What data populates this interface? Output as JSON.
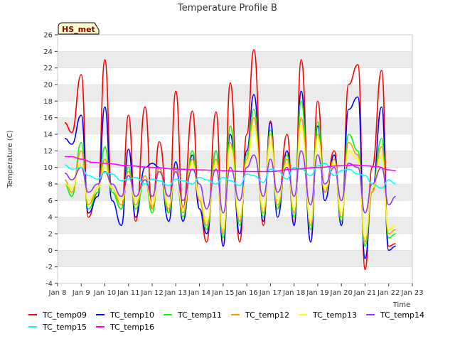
{
  "badge": "HS_met",
  "chart_data": {
    "type": "line",
    "title": "Temperature Profile B",
    "xlabel": "Time",
    "ylabel": "Temperature (C)",
    "ylim": [
      -4,
      26
    ],
    "yticks": [
      -4,
      -2,
      0,
      2,
      4,
      6,
      8,
      10,
      12,
      14,
      16,
      18,
      20,
      22,
      24,
      26
    ],
    "xlim": [
      8,
      23
    ],
    "xticks": [
      8,
      9,
      10,
      11,
      12,
      13,
      14,
      15,
      16,
      17,
      18,
      19,
      20,
      21,
      22,
      23
    ],
    "xtick_labels": [
      "Jan 8",
      "Jan 9",
      "Jan 10",
      "Jan 11",
      "Jan 12",
      "Jan 13",
      "Jan 14",
      "Jan 15",
      "Jan 16",
      "Jan 17",
      "Jan 18",
      "Jan 19",
      "Jan 20",
      "Jan 21",
      "Jan 22",
      "Jan 23"
    ],
    "grid": "horizontal bands",
    "legend_position": "bottom",
    "series": [
      {
        "name": "TC_temp09",
        "color": "#ff0000",
        "x": [
          8.3,
          8.6,
          9.0,
          9.3,
          9.7,
          10.0,
          10.3,
          10.7,
          11.0,
          11.3,
          11.7,
          12.0,
          12.3,
          12.7,
          13.0,
          13.3,
          13.7,
          14.0,
          14.3,
          14.7,
          15.0,
          15.3,
          15.7,
          16.0,
          16.3,
          16.7,
          17.0,
          17.3,
          17.7,
          18.0,
          18.3,
          18.7,
          19.0,
          19.3,
          19.7,
          20.0,
          20.3,
          20.7,
          21.0,
          21.3,
          21.7,
          22.0,
          22.3
        ],
        "y": [
          15.4,
          14.2,
          21.2,
          4.0,
          7.0,
          23.0,
          7.0,
          5.0,
          16.3,
          3.5,
          17.3,
          5.0,
          13.1,
          4.5,
          19.2,
          5.0,
          16.8,
          5.0,
          1.0,
          16.7,
          0.5,
          20.2,
          1.0,
          14.0,
          24.2,
          3.0,
          15.6,
          5.0,
          14.0,
          3.0,
          23.0,
          1.0,
          18.0,
          7.0,
          12.0,
          3.0,
          20.0,
          22.4,
          -2.3,
          10.0,
          21.7,
          0.5,
          0.8
        ]
      },
      {
        "name": "TC_temp10",
        "color": "#0000ff",
        "x": [
          8.3,
          8.6,
          9.0,
          9.3,
          9.7,
          10.0,
          10.3,
          10.7,
          11.0,
          11.3,
          11.7,
          12.0,
          12.3,
          12.7,
          13.0,
          13.3,
          13.7,
          14.0,
          14.3,
          14.7,
          15.0,
          15.3,
          15.7,
          16.0,
          16.3,
          16.7,
          17.0,
          17.3,
          17.7,
          18.0,
          18.3,
          18.7,
          19.0,
          19.3,
          19.7,
          20.0,
          20.3,
          20.7,
          21.0,
          21.3,
          21.7,
          22.0,
          22.3
        ],
        "y": [
          13.5,
          12.8,
          16.3,
          4.5,
          6.5,
          17.3,
          6.0,
          3.0,
          12.2,
          4.0,
          10.0,
          10.5,
          10.0,
          3.5,
          10.7,
          3.5,
          11.5,
          5.0,
          2.0,
          12.0,
          0.5,
          14.0,
          2.0,
          12.0,
          18.8,
          3.5,
          15.4,
          4.0,
          12.0,
          3.0,
          19.2,
          1.0,
          15.0,
          6.0,
          11.5,
          3.0,
          17.0,
          18.5,
          -1.0,
          7.0,
          17.3,
          0.0,
          0.5
        ]
      },
      {
        "name": "TC_temp11",
        "color": "#00ff00",
        "x": [
          8.3,
          8.6,
          9.0,
          9.3,
          9.7,
          10.0,
          10.3,
          10.7,
          11.0,
          11.3,
          11.7,
          12.0,
          12.3,
          12.7,
          13.0,
          13.3,
          13.7,
          14.0,
          14.3,
          14.7,
          15.0,
          15.3,
          15.7,
          16.0,
          16.3,
          16.7,
          17.0,
          17.3,
          17.7,
          18.0,
          18.3,
          18.7,
          19.0,
          19.3,
          19.7,
          20.0,
          20.3,
          20.7,
          21.0,
          21.3,
          21.7,
          22.0,
          22.3
        ],
        "y": [
          8.0,
          6.5,
          13.0,
          5.0,
          7.0,
          12.5,
          7.0,
          5.0,
          10.0,
          5.0,
          8.5,
          4.5,
          10.0,
          4.5,
          10.0,
          4.0,
          12.0,
          6.0,
          2.5,
          12.0,
          1.5,
          15.0,
          3.0,
          11.5,
          17.0,
          4.0,
          14.5,
          5.0,
          11.5,
          4.0,
          18.0,
          2.5,
          15.5,
          7.0,
          11.0,
          3.5,
          14.0,
          12.0,
          0.5,
          7.0,
          13.5,
          1.5,
          2.0
        ]
      },
      {
        "name": "TC_temp12",
        "color": "#ff9900",
        "x": [
          8.3,
          8.6,
          9.0,
          9.3,
          9.7,
          10.0,
          10.3,
          10.7,
          11.0,
          11.3,
          11.7,
          12.0,
          12.3,
          12.7,
          13.0,
          13.3,
          13.7,
          14.0,
          14.3,
          14.7,
          15.0,
          15.3,
          15.7,
          16.0,
          16.3,
          16.7,
          17.0,
          17.3,
          17.7,
          18.0,
          18.3,
          18.7,
          19.0,
          19.3,
          19.7,
          20.0,
          20.3,
          20.7,
          21.0,
          21.3,
          21.7,
          22.0,
          22.3
        ],
        "y": [
          8.5,
          7.0,
          12.0,
          5.5,
          7.5,
          11.0,
          7.5,
          5.5,
          9.5,
          5.5,
          9.0,
          5.0,
          10.0,
          5.0,
          10.0,
          4.5,
          11.0,
          6.0,
          3.0,
          11.0,
          2.0,
          13.0,
          3.5,
          11.0,
          16.0,
          4.5,
          14.0,
          5.5,
          11.0,
          4.5,
          16.0,
          3.0,
          14.0,
          7.0,
          11.0,
          4.0,
          13.0,
          11.5,
          1.0,
          7.0,
          12.5,
          2.0,
          2.5
        ]
      },
      {
        "name": "TC_temp13",
        "color": "#ffff00",
        "x": [
          8.3,
          8.6,
          9.0,
          9.3,
          9.7,
          10.0,
          10.3,
          10.7,
          11.0,
          11.3,
          11.7,
          12.0,
          12.3,
          12.7,
          13.0,
          13.3,
          13.7,
          14.0,
          14.3,
          14.7,
          15.0,
          15.3,
          15.7,
          16.0,
          16.3,
          16.7,
          17.0,
          17.3,
          17.7,
          18.0,
          18.3,
          18.7,
          19.0,
          19.3,
          19.7,
          20.0,
          20.3,
          20.7,
          21.0,
          21.3,
          21.7,
          22.0,
          22.3
        ],
        "y": [
          8.0,
          7.5,
          10.5,
          6.0,
          7.5,
          10.0,
          7.5,
          6.0,
          9.0,
          6.0,
          8.5,
          5.5,
          9.5,
          5.5,
          9.5,
          5.0,
          10.5,
          6.5,
          3.5,
          10.5,
          2.5,
          12.5,
          4.0,
          10.5,
          15.0,
          5.0,
          13.0,
          6.0,
          10.5,
          5.0,
          15.0,
          3.5,
          13.5,
          7.5,
          10.5,
          4.5,
          12.0,
          11.0,
          1.5,
          7.5,
          11.5,
          2.5,
          3.0
        ]
      },
      {
        "name": "TC_temp14",
        "color": "#9933ff",
        "x": [
          8.3,
          8.6,
          9.0,
          9.3,
          9.7,
          10.0,
          10.3,
          10.7,
          11.0,
          11.3,
          11.7,
          12.0,
          12.3,
          12.7,
          13.0,
          13.3,
          13.7,
          14.0,
          14.3,
          14.7,
          15.0,
          15.3,
          15.7,
          16.0,
          16.3,
          16.7,
          17.0,
          17.3,
          17.7,
          18.0,
          18.3,
          18.7,
          19.0,
          19.3,
          19.7,
          20.0,
          20.3,
          20.7,
          21.0,
          21.3,
          21.7,
          22.0,
          22.3
        ],
        "y": [
          9.3,
          8.5,
          10.0,
          7.0,
          8.0,
          9.5,
          8.0,
          6.5,
          9.0,
          6.5,
          8.5,
          6.5,
          9.5,
          6.5,
          9.5,
          6.0,
          9.8,
          8.0,
          5.0,
          9.8,
          4.5,
          10.0,
          6.0,
          10.0,
          11.5,
          6.5,
          11.0,
          7.0,
          10.0,
          6.5,
          12.0,
          5.5,
          11.5,
          8.0,
          10.0,
          6.0,
          10.5,
          10.0,
          4.5,
          8.0,
          10.0,
          5.5,
          6.5
        ]
      },
      {
        "name": "TC_temp15",
        "color": "#00ffff",
        "x": [
          8.3,
          8.6,
          9.0,
          9.3,
          9.7,
          10.0,
          10.3,
          10.7,
          11.0,
          11.3,
          11.7,
          12.0,
          12.3,
          12.7,
          13.0,
          13.3,
          13.7,
          14.0,
          14.3,
          14.7,
          15.0,
          15.3,
          15.7,
          16.0,
          16.3,
          16.7,
          17.0,
          17.3,
          17.7,
          18.0,
          18.3,
          18.7,
          19.0,
          19.3,
          19.7,
          20.0,
          20.3,
          20.7,
          21.0,
          21.3,
          21.7,
          22.0,
          22.3
        ],
        "y": [
          10.3,
          9.8,
          10.0,
          9.0,
          8.6,
          9.4,
          9.2,
          8.4,
          8.6,
          8.8,
          8.0,
          8.6,
          8.4,
          7.8,
          8.6,
          8.4,
          8.0,
          8.8,
          8.5,
          8.0,
          8.8,
          8.4,
          7.8,
          9.2,
          9.0,
          8.2,
          9.8,
          9.6,
          8.6,
          10.0,
          9.8,
          9.0,
          10.2,
          10.5,
          9.0,
          9.6,
          9.8,
          9.2,
          9.0,
          8.0,
          7.5,
          8.5,
          8.0
        ]
      },
      {
        "name": "TC_temp16",
        "color": "#ff00ff",
        "x": [
          8.3,
          8.6,
          9.0,
          9.5,
          10.0,
          11.0,
          12.0,
          13.0,
          14.0,
          15.0,
          16.0,
          17.0,
          18.0,
          19.0,
          20.0,
          20.5,
          21.0,
          21.5,
          22.0,
          22.3
        ],
        "y": [
          11.3,
          11.3,
          11.0,
          10.6,
          10.5,
          10.2,
          10.0,
          9.8,
          9.7,
          9.6,
          9.5,
          9.5,
          9.8,
          10.0,
          10.2,
          10.3,
          10.2,
          10.1,
          9.7,
          9.6
        ]
      }
    ]
  }
}
